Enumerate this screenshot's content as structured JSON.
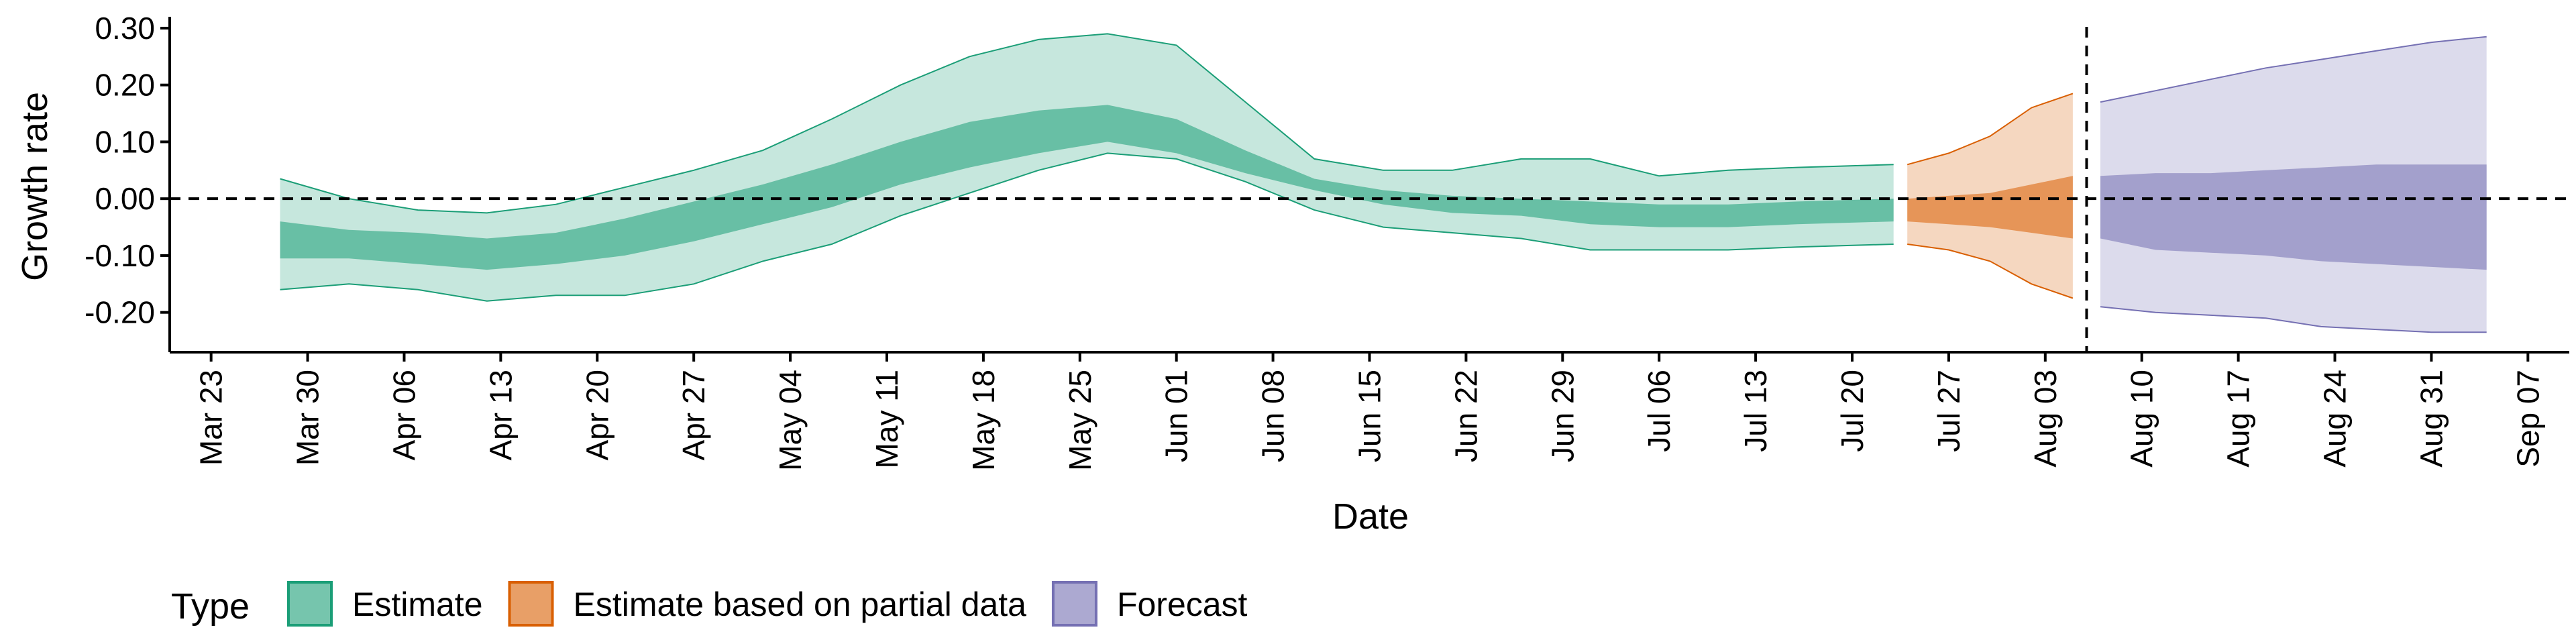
{
  "chart_data": {
    "type": "area",
    "title": "",
    "xlabel": "Date",
    "ylabel": "Growth rate",
    "xlim": [
      "2020-03-20",
      "2020-09-10"
    ],
    "ylim": [
      -0.27,
      0.32
    ],
    "x_ticks": [
      "2020-03-23",
      "2020-03-30",
      "2020-04-06",
      "2020-04-13",
      "2020-04-20",
      "2020-04-27",
      "2020-05-04",
      "2020-05-11",
      "2020-05-18",
      "2020-05-25",
      "2020-06-01",
      "2020-06-08",
      "2020-06-15",
      "2020-06-22",
      "2020-06-29",
      "2020-07-06",
      "2020-07-13",
      "2020-07-20",
      "2020-07-27",
      "2020-08-03",
      "2020-08-10",
      "2020-08-17",
      "2020-08-24",
      "2020-08-31",
      "2020-09-07"
    ],
    "x_tick_labels": [
      "Mar 23",
      "Mar 30",
      "Apr 06",
      "Apr 13",
      "Apr 20",
      "Apr 27",
      "May 04",
      "May 11",
      "May 18",
      "May 25",
      "Jun 01",
      "Jun 08",
      "Jun 15",
      "Jun 22",
      "Jun 29",
      "Jul 06",
      "Jul 13",
      "Jul 20",
      "Jul 27",
      "Aug 03",
      "Aug 10",
      "Aug 17",
      "Aug 24",
      "Aug 31",
      "Sep 07"
    ],
    "y_ticks": [
      -0.2,
      -0.1,
      0.0,
      0.1,
      0.2,
      0.3
    ],
    "y_tick_labels": [
      "-0.20",
      "-0.10",
      "0.00",
      "0.10",
      "0.20",
      "0.30"
    ],
    "hline": 0,
    "vline": "2020-08-06",
    "legend": {
      "title": "Type",
      "position": "bottom"
    },
    "series": [
      {
        "name": "Estimate",
        "color": "#1b9e77",
        "dates": [
          "2020-03-28",
          "2020-04-02",
          "2020-04-07",
          "2020-04-12",
          "2020-04-17",
          "2020-04-22",
          "2020-04-27",
          "2020-05-02",
          "2020-05-07",
          "2020-05-12",
          "2020-05-17",
          "2020-05-22",
          "2020-05-27",
          "2020-06-01",
          "2020-06-06",
          "2020-06-11",
          "2020-06-16",
          "2020-06-21",
          "2020-06-26",
          "2020-07-01",
          "2020-07-06",
          "2020-07-11",
          "2020-07-16",
          "2020-07-23"
        ],
        "lower90": [
          -0.16,
          -0.15,
          -0.16,
          -0.18,
          -0.17,
          -0.17,
          -0.15,
          -0.11,
          -0.08,
          -0.03,
          0.01,
          0.05,
          0.08,
          0.07,
          0.03,
          -0.02,
          -0.05,
          -0.06,
          -0.07,
          -0.09,
          -0.09,
          -0.09,
          -0.085,
          -0.08
        ],
        "lower50": [
          -0.105,
          -0.105,
          -0.115,
          -0.125,
          -0.115,
          -0.1,
          -0.075,
          -0.045,
          -0.015,
          0.025,
          0.055,
          0.08,
          0.1,
          0.08,
          0.045,
          0.015,
          -0.01,
          -0.025,
          -0.03,
          -0.045,
          -0.05,
          -0.05,
          -0.045,
          -0.04
        ],
        "upper50": [
          -0.04,
          -0.055,
          -0.06,
          -0.07,
          -0.06,
          -0.035,
          -0.005,
          0.025,
          0.06,
          0.1,
          0.135,
          0.155,
          0.165,
          0.14,
          0.085,
          0.035,
          0.015,
          0.005,
          0.0,
          -0.005,
          -0.01,
          -0.01,
          -0.005,
          0.0
        ],
        "upper90": [
          0.035,
          0.0,
          -0.02,
          -0.025,
          -0.01,
          0.02,
          0.05,
          0.085,
          0.14,
          0.2,
          0.25,
          0.28,
          0.29,
          0.27,
          0.17,
          0.07,
          0.05,
          0.05,
          0.07,
          0.07,
          0.04,
          0.05,
          0.055,
          0.06
        ]
      },
      {
        "name": "Estimate based on partial data",
        "color": "#d95f02",
        "dates": [
          "2020-07-24",
          "2020-07-27",
          "2020-07-30",
          "2020-08-02",
          "2020-08-05"
        ],
        "lower90": [
          -0.08,
          -0.09,
          -0.11,
          -0.15,
          -0.175
        ],
        "lower50": [
          -0.04,
          -0.045,
          -0.05,
          -0.06,
          -0.07
        ],
        "upper50": [
          0.0,
          0.005,
          0.01,
          0.025,
          0.04
        ],
        "upper90": [
          0.06,
          0.08,
          0.11,
          0.16,
          0.185
        ]
      },
      {
        "name": "Forecast",
        "color": "#7570b3",
        "dates": [
          "2020-08-07",
          "2020-08-11",
          "2020-08-15",
          "2020-08-19",
          "2020-08-23",
          "2020-08-27",
          "2020-08-31",
          "2020-09-04"
        ],
        "lower90": [
          -0.19,
          -0.2,
          -0.205,
          -0.21,
          -0.225,
          -0.23,
          -0.235,
          -0.235
        ],
        "lower50": [
          -0.07,
          -0.09,
          -0.095,
          -0.1,
          -0.11,
          -0.115,
          -0.12,
          -0.125
        ],
        "upper50": [
          0.04,
          0.045,
          0.045,
          0.05,
          0.055,
          0.06,
          0.06,
          0.06
        ],
        "upper90": [
          0.17,
          0.19,
          0.21,
          0.23,
          0.245,
          0.26,
          0.275,
          0.285
        ]
      }
    ]
  }
}
